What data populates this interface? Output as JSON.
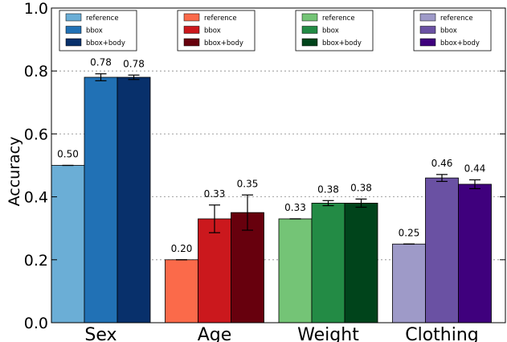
{
  "chart_data": {
    "type": "bar",
    "title": "",
    "xlabel": "",
    "ylabel": "Accuracy",
    "ylim": [
      0,
      1.0
    ],
    "yticks": [
      "0.0",
      "0.2",
      "0.4",
      "0.6",
      "0.8",
      "1.0"
    ],
    "grid": "horizontal dotted",
    "categories": [
      "Sex",
      "Age",
      "Weight",
      "Clothing"
    ],
    "groups": [
      {
        "category": "Sex",
        "bars": [
          {
            "name": "reference",
            "value": 0.5,
            "error": 0.0,
            "label": "0.50",
            "color": "#6baed6"
          },
          {
            "name": "bbox",
            "value": 0.78,
            "error": 0.011,
            "label": "0.78",
            "color": "#2171b5"
          },
          {
            "name": "bbox+body",
            "value": 0.78,
            "error": 0.007,
            "label": "0.78",
            "color": "#08306b"
          }
        ]
      },
      {
        "category": "Age",
        "bars": [
          {
            "name": "reference",
            "value": 0.2,
            "error": 0.0,
            "label": "0.20",
            "color": "#fb6a4a"
          },
          {
            "name": "bbox",
            "value": 0.33,
            "error": 0.044,
            "label": "0.33",
            "color": "#cb181d"
          },
          {
            "name": "bbox+body",
            "value": 0.35,
            "error": 0.056,
            "label": "0.35",
            "color": "#67000d"
          }
        ]
      },
      {
        "category": "Weight",
        "bars": [
          {
            "name": "reference",
            "value": 0.33,
            "error": 0.0,
            "label": "0.33",
            "color": "#74c476"
          },
          {
            "name": "bbox",
            "value": 0.38,
            "error": 0.008,
            "label": "0.38",
            "color": "#238b45"
          },
          {
            "name": "bbox+body",
            "value": 0.38,
            "error": 0.013,
            "label": "0.38",
            "color": "#00441b"
          }
        ]
      },
      {
        "category": "Clothing",
        "bars": [
          {
            "name": "reference",
            "value": 0.25,
            "error": 0.0,
            "label": "0.25",
            "color": "#9e9ac8"
          },
          {
            "name": "bbox",
            "value": 0.46,
            "error": 0.011,
            "label": "0.46",
            "color": "#6a51a3"
          },
          {
            "name": "bbox+body",
            "value": 0.44,
            "error": 0.014,
            "label": "0.44",
            "color": "#3f007d"
          }
        ]
      }
    ],
    "legends": [
      {
        "entries": [
          "reference",
          "bbox",
          "bbox+body"
        ],
        "colors": [
          "#6baed6",
          "#2171b5",
          "#08306b"
        ]
      },
      {
        "entries": [
          "reference",
          "bbox",
          "bbox+body"
        ],
        "colors": [
          "#fb6a4a",
          "#cb181d",
          "#67000d"
        ]
      },
      {
        "entries": [
          "reference",
          "bbox",
          "bbox+body"
        ],
        "colors": [
          "#74c476",
          "#238b45",
          "#00441b"
        ]
      },
      {
        "entries": [
          "reference",
          "bbox",
          "bbox+body"
        ],
        "colors": [
          "#9e9ac8",
          "#6a51a3",
          "#3f007d"
        ]
      }
    ],
    "legend_placement": "top, one box per category"
  }
}
